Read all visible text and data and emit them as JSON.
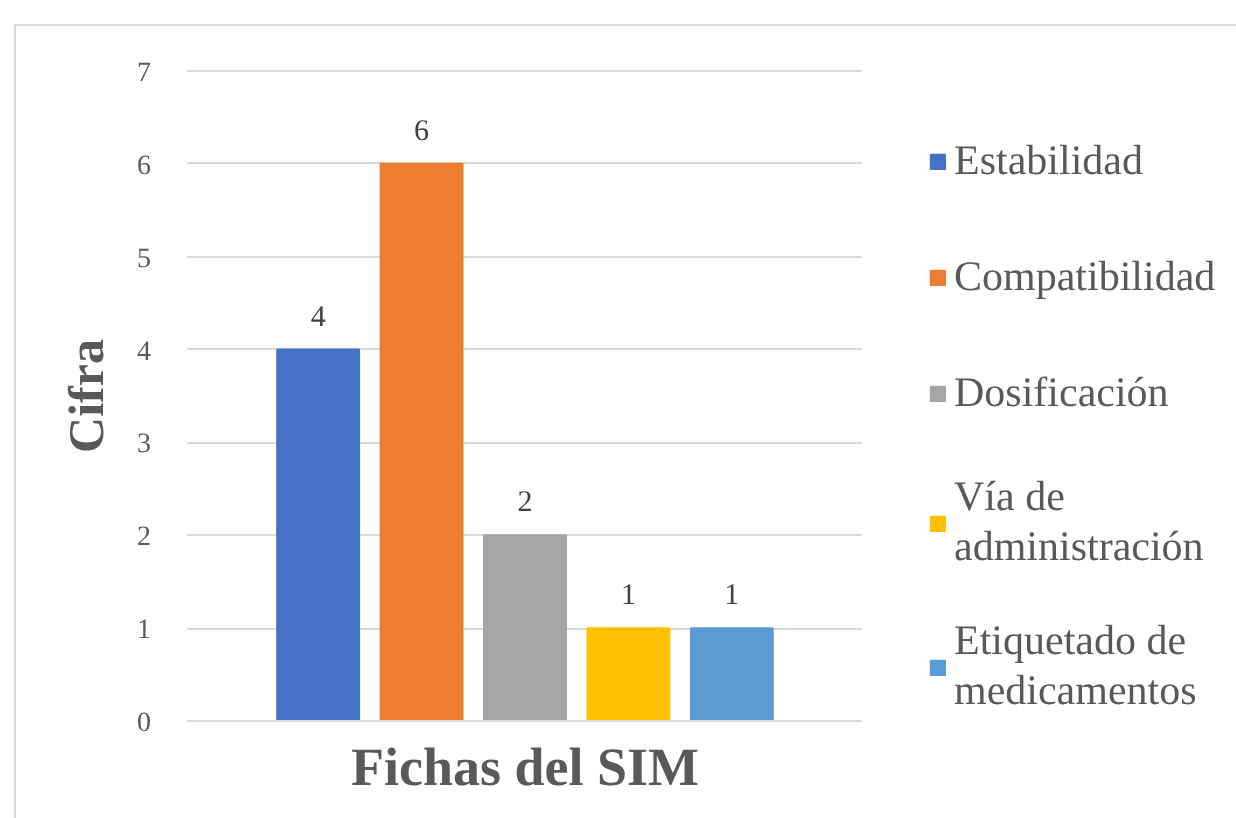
{
  "chart_data": {
    "type": "bar",
    "categories": [
      null
    ],
    "xlabel": "Fichas del SIM",
    "ylabel": "Cifra",
    "ylim": [
      0,
      7
    ],
    "yticks": [
      0,
      1,
      2,
      3,
      4,
      5,
      6,
      7
    ],
    "grid": "y",
    "legend": "right",
    "data_labels": true,
    "series": [
      {
        "name": "Estabilidad",
        "color": "#4472c4",
        "values": [
          4
        ]
      },
      {
        "name": "Compatibilidad",
        "color": "#ed7d31",
        "values": [
          6
        ]
      },
      {
        "name": "Dosificación",
        "color": "#a5a5a5",
        "values": [
          2
        ]
      },
      {
        "name": "Vía de administración",
        "color": "#ffc000",
        "values": [
          1
        ]
      },
      {
        "name": "Etiquetado de medicamentos",
        "color": "#5b9bd5",
        "values": [
          1
        ]
      }
    ]
  }
}
